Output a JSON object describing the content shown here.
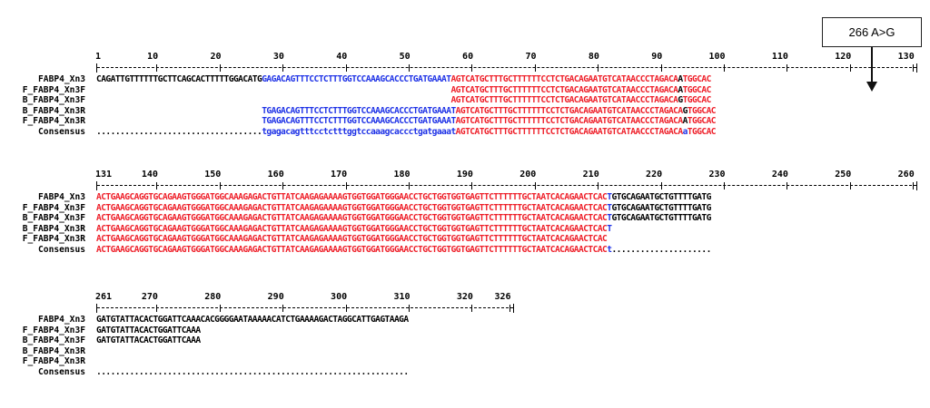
{
  "annotation": {
    "label": "266 A>G"
  },
  "blocks": [
    {
      "numbers": [
        "1",
        "10",
        "20",
        "30",
        "40",
        "50",
        "60",
        "70",
        "80",
        "90",
        "100",
        "110",
        "120",
        "130"
      ],
      "rows": [
        {
          "name": "FABP4_Xn3",
          "seq": [
            [
              "K",
              "CAGATTGTTTTTTGCTTCAGCACTTTTTGGACATG"
            ],
            [
              "B",
              "GAGACAGTTTCCTCTTTGGTCCAAAGCACCCTGATGAAAT"
            ],
            [
              "R",
              "AGTCATGCTTTGCTTTTTTCCTCTGACAGAATGTCATAACCCTAGACA"
            ],
            [
              "K",
              "A"
            ],
            [
              "R",
              "TGGCAC"
            ]
          ]
        },
        {
          "name": "F_FABP4_Xn3F",
          "seq": [
            [
              "K",
              "                                                                           "
            ],
            [
              "R",
              "AGTCATGCTTTGCTTTTTTCCTCTGACAGAATGTCATAACCCTAGACA"
            ],
            [
              "K",
              "A"
            ],
            [
              "R",
              "TGGCAC"
            ]
          ]
        },
        {
          "name": "B_FABP4_Xn3F",
          "seq": [
            [
              "K",
              "                                                                           "
            ],
            [
              "R",
              "AGTCATGCTTTGCTTTTTTCCTCTGACAGAATGTCATAACCCTAGACA"
            ],
            [
              "K",
              "G"
            ],
            [
              "R",
              "TGGCAC"
            ]
          ]
        },
        {
          "name": "B_FABP4_Xn3R",
          "seq": [
            [
              "K",
              "                                   "
            ],
            [
              "B",
              "TGAGACAGTTTCCTCTTTGGTCCAAAGCACCCTGATGAAAT"
            ],
            [
              "R",
              "AGTCATGCTTTGCTTTTTTCCTCTGACAGAATGTCATAACCCTAGACA"
            ],
            [
              "K",
              "G"
            ],
            [
              "R",
              "TGGCAC"
            ]
          ]
        },
        {
          "name": "F_FABP4_Xn3R",
          "seq": [
            [
              "K",
              "                                   "
            ],
            [
              "B",
              "TGAGACAGTTTCCTCTTTGGTCCAAAGCACCCTGATGAAAT"
            ],
            [
              "R",
              "AGTCATGCTTTGCTTTTTTCCTCTGACAGAATGTCATAACCCTAGACA"
            ],
            [
              "K",
              "A"
            ],
            [
              "R",
              "TGGCAC"
            ]
          ]
        },
        {
          "name": "Consensus",
          "seq": [
            [
              "K",
              "..................................."
            ],
            [
              "B",
              "tgagacagtttcctctttggtccaaagcaccctgatgaaat"
            ],
            [
              "R",
              "AGTCATGCTTTGCTTTTTTCCTCTGACAGAATGTCATAACCCTAGACA"
            ],
            [
              "B",
              "a"
            ],
            [
              "R",
              "TGGCAC"
            ]
          ]
        }
      ]
    },
    {
      "numbers": [
        "131",
        "140",
        "150",
        "160",
        "170",
        "180",
        "190",
        "200",
        "210",
        "220",
        "230",
        "240",
        "250",
        "260"
      ],
      "rows": [
        {
          "name": "FABP4_Xn3",
          "seq": [
            [
              "R",
              "ACTGAAGCAGGTGCAGAAGTGGGATGGCAAAGAGACTGTTATCAAGAGAAAAGTGGTGGATGGGAACCTGCTGGTGGTGAGTTCTTTTTTGCTAATCACAGAACTCAC"
            ],
            [
              "B",
              "T"
            ],
            [
              "K",
              "GTGCAGAATGCTGTTTTGATG"
            ]
          ]
        },
        {
          "name": "F_FABP4_Xn3F",
          "seq": [
            [
              "R",
              "ACTGAAGCAGGTGCAGAAGTGGGATGGCAAAGAGACTGTTATCAAGAGAAAAGTGGTGGATGGGAACCTGCTGGTGGTGAGTTCTTTTTTGCTAATCACAGAACTCAC"
            ],
            [
              "B",
              "T"
            ],
            [
              "K",
              "GTGCAGAATGCTGTTTTGATG"
            ]
          ]
        },
        {
          "name": "B_FABP4_Xn3F",
          "seq": [
            [
              "R",
              "ACTGAAGCAGGTGCAGAAGTGGGATGGCAAAGAGACTGTTATCAAGAGAAAAGTGGTGGATGGGAACCTGCTGGTGGTGAGTTCTTTTTTGCTAATCACAGAACTCAC"
            ],
            [
              "B",
              "T"
            ],
            [
              "K",
              "GTGCAGAATGCTGTTTTGATG"
            ]
          ]
        },
        {
          "name": "B_FABP4_Xn3R",
          "seq": [
            [
              "R",
              "ACTGAAGCAGGTGCAGAAGTGGGATGGCAAAGAGACTGTTATCAAGAGAAAAGTGGTGGATGGGAACCTGCTGGTGGTGAGTTCTTTTTTGCTAATCACAGAACTCAC"
            ],
            [
              "B",
              "T"
            ]
          ]
        },
        {
          "name": "F_FABP4_Xn3R",
          "seq": [
            [
              "R",
              "ACTGAAGCAGGTGCAGAAGTGGGATGGCAAAGAGACTGTTATCAAGAGAAAAGTGGTGGATGGGAACCTGCTGGTGGTGAGTTCTTTTTTGCTAATCACAGAACTCAC"
            ]
          ]
        },
        {
          "name": "Consensus",
          "seq": [
            [
              "R",
              "ACTGAAGCAGGTGCAGAAGTGGGATGGCAAAGAGACTGTTATCAAGAGAAAAGTGGTGGATGGGAACCTGCTGGTGGTGAGTTCTTTTTTGCTAATCACAGAACTCAC"
            ],
            [
              "B",
              "t"
            ],
            [
              "K",
              "....................."
            ]
          ]
        }
      ]
    },
    {
      "numbers": [
        "261",
        "270",
        "280",
        "290",
        "300",
        "310",
        "320",
        "326"
      ],
      "rows": [
        {
          "name": "FABP4_Xn3",
          "seq": [
            [
              "K",
              "GATGTATTACACTGGATTCAAACACGGGGAATAAAAACATCTGAAAAGACTAGGCATTGAGTAAGA"
            ]
          ]
        },
        {
          "name": "F_FABP4_Xn3F",
          "seq": [
            [
              "K",
              "GATGTATTACACTGGATTCAAA"
            ]
          ]
        },
        {
          "name": "B_FABP4_Xn3F",
          "seq": [
            [
              "K",
              "GATGTATTACACTGGATTCAAA"
            ]
          ]
        },
        {
          "name": "B_FABP4_Xn3R",
          "seq": []
        },
        {
          "name": "F_FABP4_Xn3R",
          "seq": []
        },
        {
          "name": "Consensus",
          "seq": [
            [
              "K",
              ".................................................................."
            ]
          ]
        }
      ]
    }
  ]
}
